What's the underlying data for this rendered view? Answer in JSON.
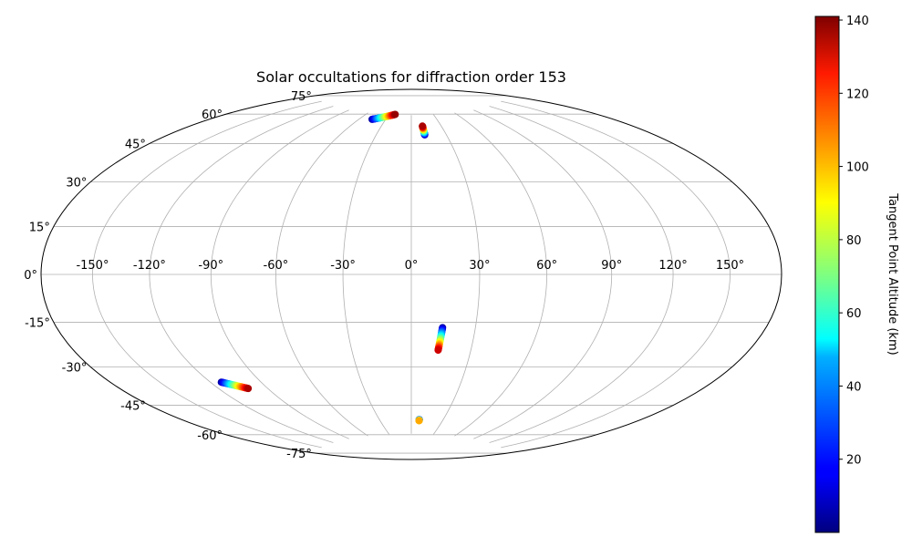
{
  "chart_data": {
    "type": "scatter",
    "title": "Solar occultations for diffraction order 153",
    "projection": "hammer",
    "grid": true,
    "lon_ticks": [
      -150,
      -120,
      -90,
      -60,
      -30,
      0,
      30,
      60,
      90,
      120,
      150
    ],
    "lat_ticks": [
      -75,
      -60,
      -45,
      -30,
      -15,
      0,
      15,
      30,
      45,
      60,
      75
    ],
    "lon_tick_labels": [
      "-150°",
      "-120°",
      "-90°",
      "-60°",
      "-30°",
      "0°",
      "30°",
      "60°",
      "90°",
      "120°",
      "150°"
    ],
    "lat_tick_labels": [
      "-75°",
      "-60°",
      "-45°",
      "-30°",
      "-15°",
      "0°",
      "15°",
      "30°",
      "45°",
      "60°",
      "75°"
    ],
    "colorbar": {
      "label": "Tangent Point Altitude (km)",
      "min": 0,
      "max": 141,
      "ticks": [
        20,
        40,
        60,
        80,
        100,
        120,
        140
      ],
      "tick_labels": [
        "20",
        "40",
        "60",
        "80",
        "100",
        "120",
        "140"
      ],
      "colormap": "jet"
    },
    "tracks": [
      {
        "lon_start": -45.5,
        "lat_start": 71.9,
        "alt_start": 5,
        "lon_end": -22,
        "lat_end": 75.2,
        "alt_end": 138
      },
      {
        "lon_start": 11.5,
        "lat_start": 64.4,
        "alt_start": 5,
        "lon_end": 11.2,
        "lat_end": 69.0,
        "alt_end": 135
      },
      {
        "lon_start": 14.6,
        "lat_start": -23.4,
        "alt_start": 5,
        "lon_end": 13.5,
        "lat_end": -33.6,
        "alt_end": 130
      },
      {
        "lon_start": -113.5,
        "lat_start": -43.5,
        "alt_start": 5,
        "lon_end": -102,
        "lat_end": -47.4,
        "alt_end": 135
      },
      {
        "lon_start": 7.5,
        "lat_start": -67.4,
        "alt_start": 2,
        "lon_end": 7.5,
        "lat_end": -67.9,
        "alt_end": 100
      }
    ]
  }
}
